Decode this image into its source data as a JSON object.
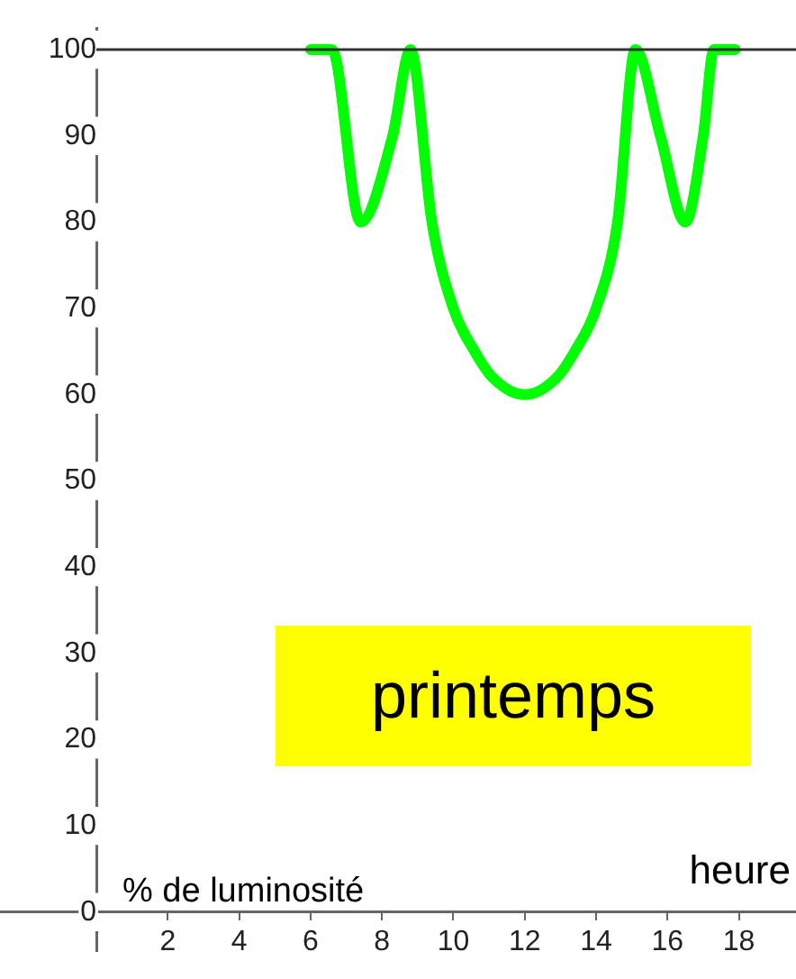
{
  "chart_data": {
    "type": "line",
    "xlabel": "heure",
    "ylabel": "% de luminosité",
    "annotations": [
      "printemps"
    ],
    "x": [
      6.0,
      6.6,
      7.4,
      8.3,
      8.8,
      9.4,
      10.0,
      10.6,
      11.1,
      12.0,
      12.9,
      13.4,
      14.0,
      14.6,
      15.1,
      15.8,
      16.5,
      17.0,
      17.3,
      17.9
    ],
    "series": [
      {
        "color": "#00ff00",
        "values": [
          100,
          100,
          80,
          90,
          100,
          80,
          70,
          65,
          62,
          60,
          62,
          65,
          70,
          80,
          100,
          90,
          80,
          90,
          100,
          100
        ]
      }
    ],
    "xlim": [
      -2.7,
      19.6
    ],
    "ylim": [
      -4.5,
      102.5
    ],
    "xticks": [
      2,
      4,
      6,
      8,
      10,
      12,
      14,
      16,
      18
    ],
    "yticks": [
      0,
      10,
      20,
      30,
      40,
      50,
      60,
      70,
      80,
      90,
      100
    ],
    "ref_lines": [
      {
        "axis": "y",
        "value": 100,
        "color": "#333333"
      }
    ],
    "grid": false,
    "legend": false,
    "marker": "none",
    "line_style": "solid"
  }
}
